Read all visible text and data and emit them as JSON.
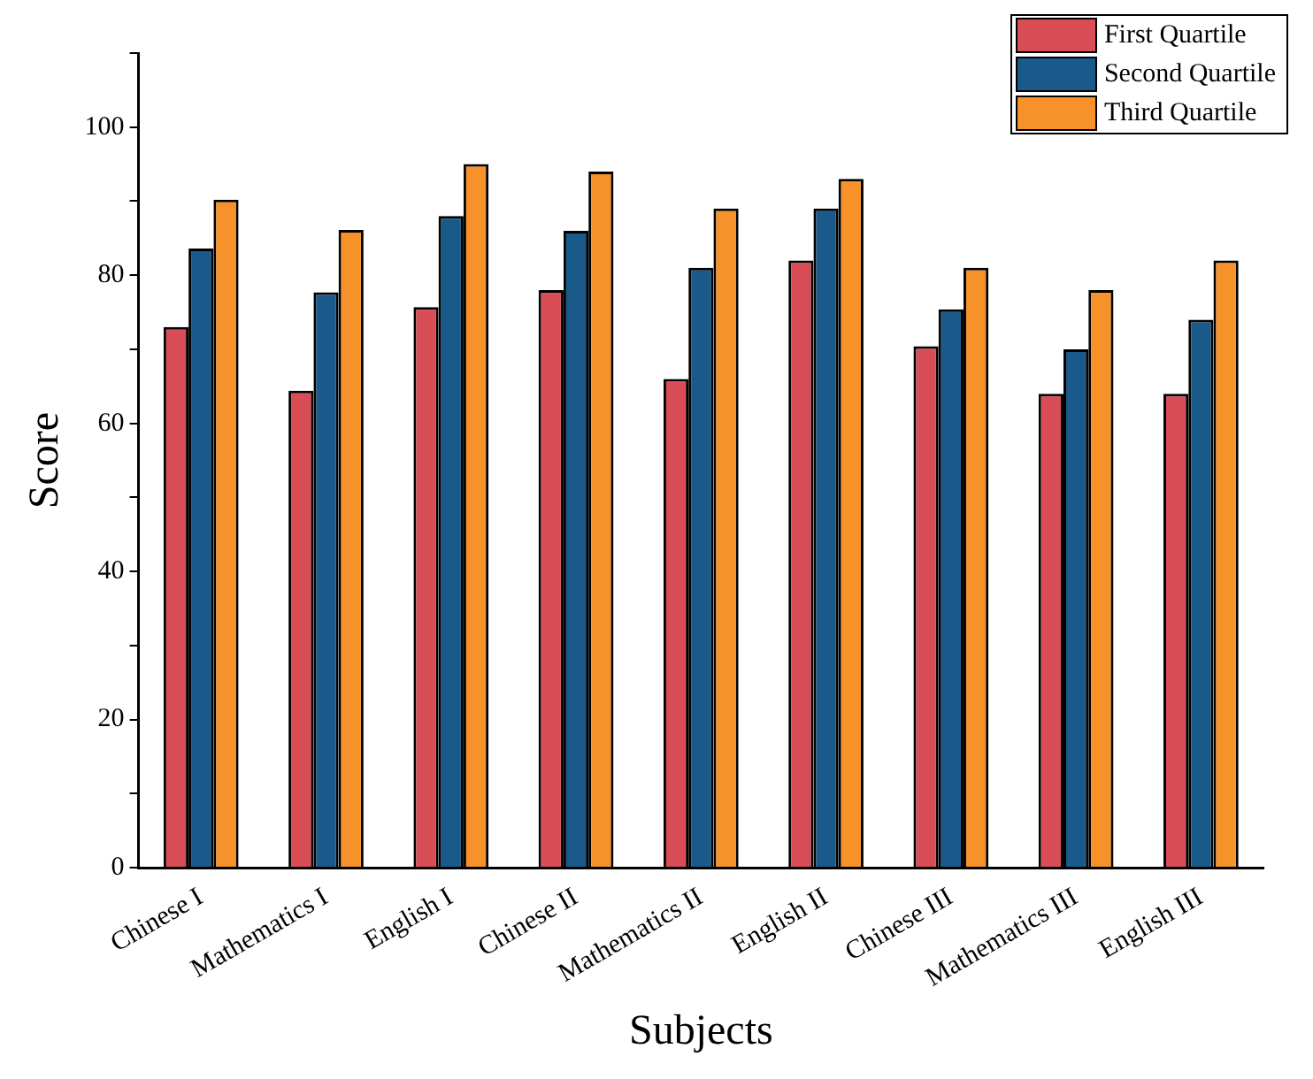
{
  "chart_data": {
    "type": "bar",
    "xlabel": "Subjects",
    "ylabel": "Score",
    "categories": [
      "Chinese I",
      "Mathematics I",
      "English I",
      "Chinese II",
      "Mathematics II",
      "English II",
      "Chinese III",
      "Mathematics III",
      "English III"
    ],
    "series": [
      {
        "name": "First Quartile",
        "color": "#d94d57",
        "values": [
          73,
          64.4,
          75.7,
          78,
          66,
          82,
          70.4,
          64,
          64
        ]
      },
      {
        "name": "Second Quartile",
        "color": "#1a5a8a",
        "values": [
          83.6,
          77.7,
          88,
          86,
          81,
          89,
          75.4,
          70,
          74
        ]
      },
      {
        "name": "Third Quartile",
        "color": "#f7922a",
        "values": [
          90.2,
          86.1,
          95,
          94,
          89,
          93,
          81,
          78,
          82
        ]
      }
    ],
    "ylim": [
      0,
      110
    ],
    "yticks": [
      0,
      {
        "value": 10,
        "label": null
      },
      20,
      {
        "value": 30,
        "label": null
      },
      40,
      {
        "value": 50,
        "label": null
      },
      60,
      {
        "value": 70,
        "label": null
      },
      80,
      {
        "value": 90,
        "label": null
      },
      100,
      {
        "value": 110,
        "label": null
      }
    ],
    "grid": false,
    "legend": "top right"
  }
}
